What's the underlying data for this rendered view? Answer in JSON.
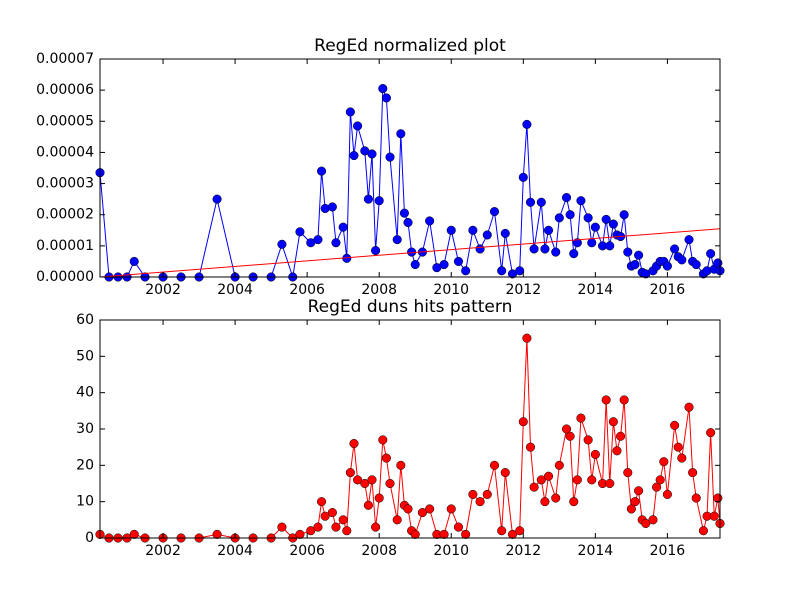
{
  "chart_data": [
    {
      "type": "line",
      "title": "RegEd normalized plot",
      "x": [
        2000.25,
        2000.5,
        2000.75,
        2001.0,
        2001.2,
        2001.5,
        2002.0,
        2002.5,
        2003.0,
        2003.5,
        2004.0,
        2004.5,
        2005.0,
        2005.3,
        2005.6,
        2005.8,
        2006.1,
        2006.3,
        2006.4,
        2006.5,
        2006.7,
        2006.8,
        2007.0,
        2007.1,
        2007.2,
        2007.3,
        2007.4,
        2007.6,
        2007.7,
        2007.8,
        2007.9,
        2008.0,
        2008.1,
        2008.2,
        2008.3,
        2008.5,
        2008.6,
        2008.7,
        2008.8,
        2008.9,
        2009.0,
        2009.2,
        2009.4,
        2009.6,
        2009.8,
        2010.0,
        2010.2,
        2010.4,
        2010.6,
        2010.8,
        2011.0,
        2011.2,
        2011.4,
        2011.5,
        2011.7,
        2011.9,
        2012.0,
        2012.1,
        2012.2,
        2012.3,
        2012.5,
        2012.6,
        2012.7,
        2012.9,
        2013.0,
        2013.2,
        2013.3,
        2013.4,
        2013.5,
        2013.6,
        2013.8,
        2013.9,
        2014.0,
        2014.2,
        2014.3,
        2014.4,
        2014.5,
        2014.6,
        2014.7,
        2014.8,
        2014.9,
        2015.0,
        2015.1,
        2015.2,
        2015.3,
        2015.4,
        2015.6,
        2015.7,
        2015.8,
        2015.9,
        2016.0,
        2016.2,
        2016.3,
        2016.4,
        2016.6,
        2016.7,
        2016.8,
        2017.0,
        2017.1,
        2017.2,
        2017.3,
        2017.4,
        2017.46
      ],
      "series": [
        {
          "color": "#0000ff",
          "markers": true,
          "values": [
            3.35e-05,
            0,
            0,
            0,
            5e-06,
            0,
            0,
            0,
            0,
            2.5e-05,
            0,
            0,
            0,
            1.05e-05,
            0,
            1.45e-05,
            1.1e-05,
            1.2e-05,
            3.4e-05,
            2.2e-05,
            2.25e-05,
            1.1e-05,
            1.6e-05,
            6e-06,
            5.3e-05,
            3.9e-05,
            4.85e-05,
            4.05e-05,
            2.5e-05,
            3.95e-05,
            8.5e-06,
            2.45e-05,
            6.05e-05,
            5.75e-05,
            3.85e-05,
            1.2e-05,
            4.6e-05,
            2.05e-05,
            1.75e-05,
            8e-06,
            4e-06,
            8e-06,
            1.8e-05,
            3e-06,
            4e-06,
            1.5e-05,
            5e-06,
            2e-06,
            1.5e-05,
            9e-06,
            1.35e-05,
            2.1e-05,
            2e-06,
            1.4e-05,
            1e-06,
            2e-06,
            3.2e-05,
            4.9e-05,
            2.4e-05,
            9e-06,
            2.4e-05,
            9e-06,
            1.5e-05,
            8e-06,
            1.9e-05,
            2.55e-05,
            2e-05,
            7.5e-06,
            1.1e-05,
            2.45e-05,
            1.9e-05,
            1.1e-05,
            1.6e-05,
            1e-05,
            1.85e-05,
            1e-05,
            1.7e-05,
            1.35e-05,
            1.3e-05,
            2e-05,
            8e-06,
            3.5e-06,
            4e-06,
            7e-06,
            1.5e-06,
            1e-06,
            2e-06,
            3.5e-06,
            5e-06,
            5e-06,
            3.5e-06,
            9e-06,
            6.5e-06,
            5.5e-06,
            1.2e-05,
            5e-06,
            4e-06,
            1e-06,
            2e-06,
            7.5e-06,
            2.5e-06,
            4.5e-06,
            2e-06
          ]
        },
        {
          "color": "#ff0000",
          "markers": false,
          "x": [
            2000.25,
            2017.46
          ],
          "values": [
            0,
            1.55e-05
          ]
        }
      ],
      "xlim": [
        2000.25,
        2017.46
      ],
      "xticks": [
        2002,
        2004,
        2006,
        2008,
        2010,
        2012,
        2014,
        2016
      ],
      "ylim": [
        0,
        7e-05
      ],
      "yticks": [
        {
          "value": 0,
          "label": "0.00000"
        },
        {
          "value": 1e-05,
          "label": "0.00001"
        },
        {
          "value": 2e-05,
          "label": "0.00002"
        },
        {
          "value": 3e-05,
          "label": "0.00003"
        },
        {
          "value": 4e-05,
          "label": "0.00004"
        },
        {
          "value": 5e-05,
          "label": "0.00005"
        },
        {
          "value": 6e-05,
          "label": "0.00006"
        },
        {
          "value": 7e-05,
          "label": "0.00007"
        }
      ]
    },
    {
      "type": "line",
      "title": "RegEd duns hits pattern",
      "x": [
        2000.25,
        2000.5,
        2000.75,
        2001.0,
        2001.2,
        2001.5,
        2002.0,
        2002.5,
        2003.0,
        2003.5,
        2004.0,
        2004.5,
        2005.0,
        2005.3,
        2005.6,
        2005.8,
        2006.1,
        2006.3,
        2006.4,
        2006.5,
        2006.7,
        2006.8,
        2007.0,
        2007.1,
        2007.2,
        2007.3,
        2007.4,
        2007.6,
        2007.7,
        2007.8,
        2007.9,
        2008.0,
        2008.1,
        2008.2,
        2008.3,
        2008.5,
        2008.6,
        2008.7,
        2008.8,
        2008.9,
        2009.0,
        2009.2,
        2009.4,
        2009.6,
        2009.8,
        2010.0,
        2010.2,
        2010.4,
        2010.6,
        2010.8,
        2011.0,
        2011.2,
        2011.4,
        2011.5,
        2011.7,
        2011.9,
        2012.0,
        2012.1,
        2012.2,
        2012.3,
        2012.5,
        2012.6,
        2012.7,
        2012.9,
        2013.0,
        2013.2,
        2013.3,
        2013.4,
        2013.5,
        2013.6,
        2013.8,
        2013.9,
        2014.0,
        2014.2,
        2014.3,
        2014.4,
        2014.5,
        2014.6,
        2014.7,
        2014.8,
        2014.9,
        2015.0,
        2015.1,
        2015.2,
        2015.3,
        2015.4,
        2015.6,
        2015.7,
        2015.8,
        2015.9,
        2016.0,
        2016.2,
        2016.3,
        2016.4,
        2016.6,
        2016.7,
        2016.8,
        2017.0,
        2017.1,
        2017.2,
        2017.3,
        2017.4,
        2017.46
      ],
      "series": [
        {
          "color": "#ff0000",
          "markers": true,
          "values": [
            1,
            0,
            0,
            0,
            1,
            0,
            0,
            0,
            0,
            1,
            0,
            0,
            0,
            3,
            0,
            1,
            2,
            3,
            10,
            6,
            7,
            3,
            5,
            2,
            18,
            26,
            16,
            15,
            9,
            16,
            3,
            11,
            27,
            22,
            15,
            5,
            20,
            9,
            8,
            2,
            1,
            7,
            8,
            1,
            1,
            8,
            3,
            1,
            12,
            10,
            12,
            20,
            2,
            18,
            1,
            2,
            32,
            55,
            25,
            14,
            16,
            10,
            17,
            11,
            20,
            30,
            28,
            10,
            16,
            33,
            27,
            16,
            23,
            15,
            38,
            15,
            32,
            24,
            28,
            38,
            18,
            8,
            10,
            13,
            5,
            4,
            5,
            14,
            16,
            21,
            12,
            31,
            25,
            22,
            36,
            18,
            11,
            2,
            6,
            29,
            6,
            11,
            4
          ]
        }
      ],
      "xlim": [
        2000.25,
        2017.46
      ],
      "xticks": [
        2002,
        2004,
        2006,
        2008,
        2010,
        2012,
        2014,
        2016
      ],
      "ylim": [
        0,
        60
      ],
      "yticks": [
        0,
        10,
        20,
        30,
        40,
        50,
        60
      ]
    }
  ]
}
